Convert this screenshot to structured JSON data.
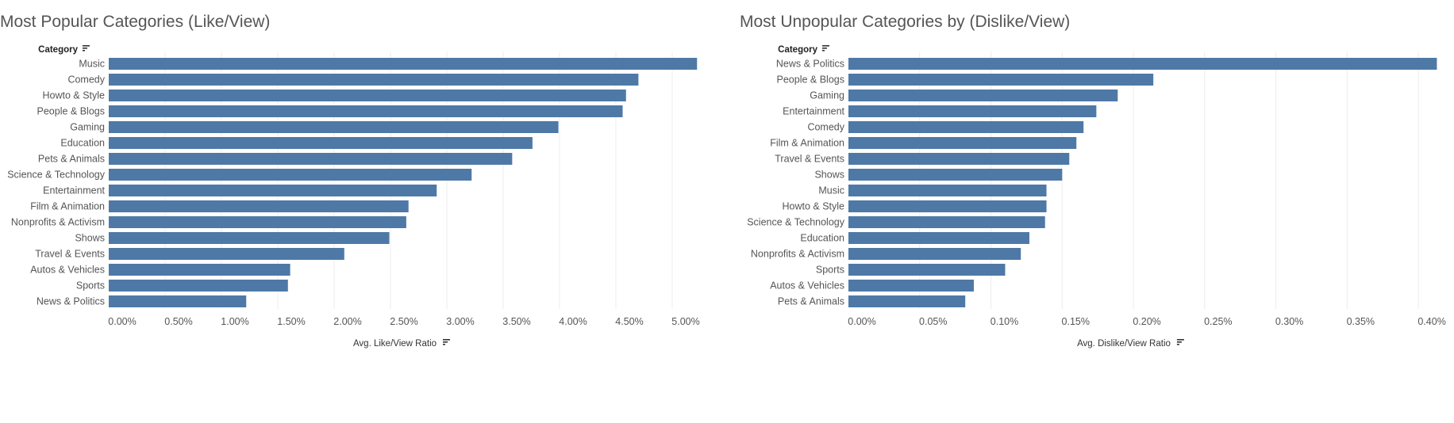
{
  "chart_data": [
    {
      "type": "bar",
      "orientation": "horizontal",
      "title": "Most Popular Categories (Like/View)",
      "category_header": "Category",
      "xlabel": "Avg. Like/View Ratio",
      "ylabel": "",
      "xlim": [
        0,
        5.5
      ],
      "tick_values": [
        0,
        0.5,
        1,
        1.5,
        2,
        2.5,
        3,
        3.5,
        4,
        4.5,
        5
      ],
      "tick_labels": [
        "0.00%",
        "0.50%",
        "1.00%",
        "1.50%",
        "2.00%",
        "2.50%",
        "3.00%",
        "3.50%",
        "4.00%",
        "4.50%",
        "5.00%"
      ],
      "grid": true,
      "color": "#4e79a7",
      "categories": [
        "Music",
        "Comedy",
        "Howto & Style",
        "People & Blogs",
        "Gaming",
        "Education",
        "Pets & Animals",
        "Science & Technology",
        "Entertainment",
        "Film & Animation",
        "Nonprofits & Activism",
        "Shows",
        "Travel & Events",
        "Autos & Vehicles",
        "Sports",
        "News & Politics"
      ],
      "values": [
        5.22,
        4.7,
        4.59,
        4.56,
        3.99,
        3.76,
        3.58,
        3.22,
        2.91,
        2.66,
        2.64,
        2.49,
        2.09,
        1.61,
        1.59,
        1.22
      ]
    },
    {
      "type": "bar",
      "orientation": "horizontal",
      "title": "Most Unpopular Categories by (Dislike/View)",
      "category_header": "Category",
      "xlabel": "Avg. Dislike/View Ratio",
      "ylabel": "",
      "xlim": [
        0,
        0.42
      ],
      "tick_values": [
        0,
        0.05,
        0.1,
        0.15,
        0.2,
        0.25,
        0.3,
        0.35,
        0.4
      ],
      "tick_labels": [
        "0.00%",
        "0.05%",
        "0.10%",
        "0.15%",
        "0.20%",
        "0.25%",
        "0.30%",
        "0.35%",
        "0.40%"
      ],
      "grid": true,
      "color": "#4e79a7",
      "categories": [
        "News & Politics",
        "People & Blogs",
        "Gaming",
        "Entertainment",
        "Comedy",
        "Film & Animation",
        "Travel & Events",
        "Shows",
        "Music",
        "Howto & Style",
        "Science & Technology",
        "Education",
        "Nonprofits & Activism",
        "Sports",
        "Autos & Vehicles",
        "Pets & Animals"
      ],
      "values": [
        0.413,
        0.214,
        0.189,
        0.174,
        0.165,
        0.16,
        0.155,
        0.15,
        0.139,
        0.139,
        0.138,
        0.127,
        0.121,
        0.11,
        0.088,
        0.082
      ]
    }
  ]
}
